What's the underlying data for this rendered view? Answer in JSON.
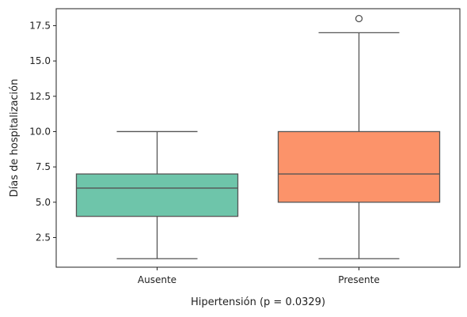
{
  "chart_data": {
    "type": "box",
    "title": "",
    "xlabel": "Hipertensión (p = 0.0329)",
    "ylabel": "Días de hospitalización",
    "categories": [
      "Ausente",
      "Presente"
    ],
    "ylim": [
      0.4,
      18.7
    ],
    "yticks": [
      2.5,
      5.0,
      7.5,
      10.0,
      12.5,
      15.0,
      17.5
    ],
    "ytick_labels": [
      "2.5",
      "5.0",
      "7.5",
      "10.0",
      "12.5",
      "15.0",
      "17.5"
    ],
    "grid": false,
    "series": [
      {
        "category": "Ausente",
        "whisker_low": 1,
        "q1": 4,
        "median": 6,
        "q3": 7,
        "whisker_high": 10,
        "outliers": [],
        "color": "#66c2a5"
      },
      {
        "category": "Presente",
        "whisker_low": 1,
        "q1": 5,
        "median": 7,
        "q3": 10,
        "whisker_high": 17,
        "outliers": [
          18
        ],
        "color": "#fc8d62"
      }
    ]
  }
}
